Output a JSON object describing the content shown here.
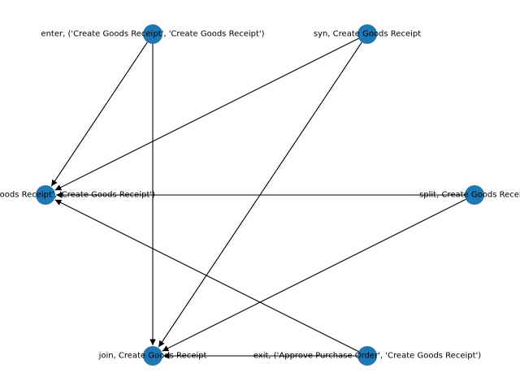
{
  "graph": {
    "node_color": "#1f77b4",
    "edge_color": "#000000",
    "directed": true,
    "nodes": [
      {
        "id": "enter",
        "label": "enter, ('Create Goods Receipt', 'Create Goods Receipt')"
      },
      {
        "id": "syn",
        "label": "syn, Create Goods Receipt"
      },
      {
        "id": "loop",
        "label": "loop, ('Create Goods Receipt', 'Create Goods Receipt')"
      },
      {
        "id": "split",
        "label": "split, Create Goods Receipt"
      },
      {
        "id": "join",
        "label": "join, Create Goods Receipt"
      },
      {
        "id": "exit",
        "label": "exit, ('Approve Purchase Order', 'Create Goods Receipt')"
      }
    ],
    "edges": [
      {
        "from": "enter",
        "to": "loop"
      },
      {
        "from": "enter",
        "to": "join"
      },
      {
        "from": "syn",
        "to": "loop"
      },
      {
        "from": "syn",
        "to": "join"
      },
      {
        "from": "split",
        "to": "loop"
      },
      {
        "from": "split",
        "to": "join"
      },
      {
        "from": "exit",
        "to": "loop"
      },
      {
        "from": "exit",
        "to": "join"
      }
    ]
  }
}
